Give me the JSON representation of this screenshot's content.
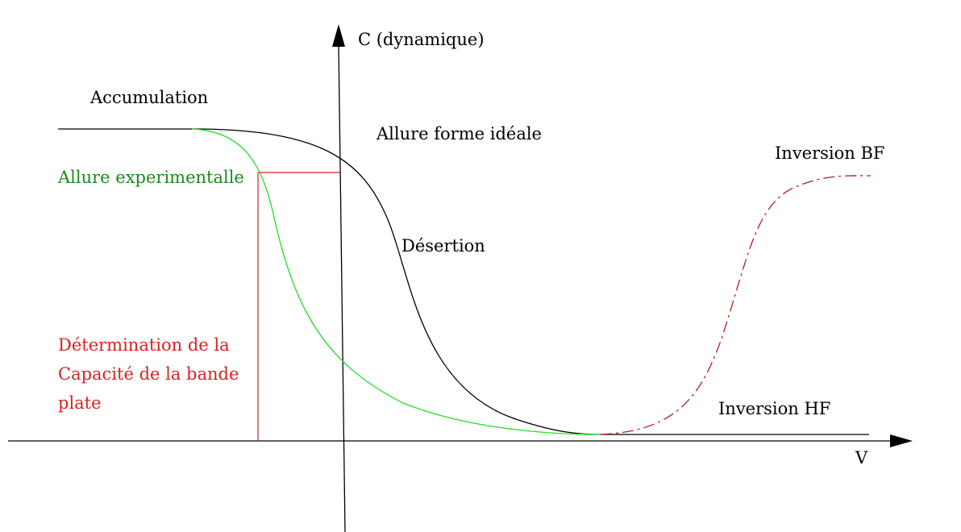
{
  "axes": {
    "y_label": "C (dynamique)",
    "x_label": "V"
  },
  "labels": {
    "accumulation": "Accumulation",
    "ideal": "Allure forme idéale",
    "inversion_bf": "Inversion BF",
    "experimental": "Allure experimentalle",
    "desertion": "Désertion",
    "determination": [
      "Détermination de la",
      "Capacité de la bande",
      "plate"
    ],
    "inversion_hf": "Inversion HF"
  },
  "colors": {
    "axis": "#000000",
    "ideal_curve": "#000000",
    "experimental_curve": "#22dd22",
    "experimental_label": "#1a8a1a",
    "determination": "#dd2020",
    "inversion_bf_curve": "#b02020"
  }
}
